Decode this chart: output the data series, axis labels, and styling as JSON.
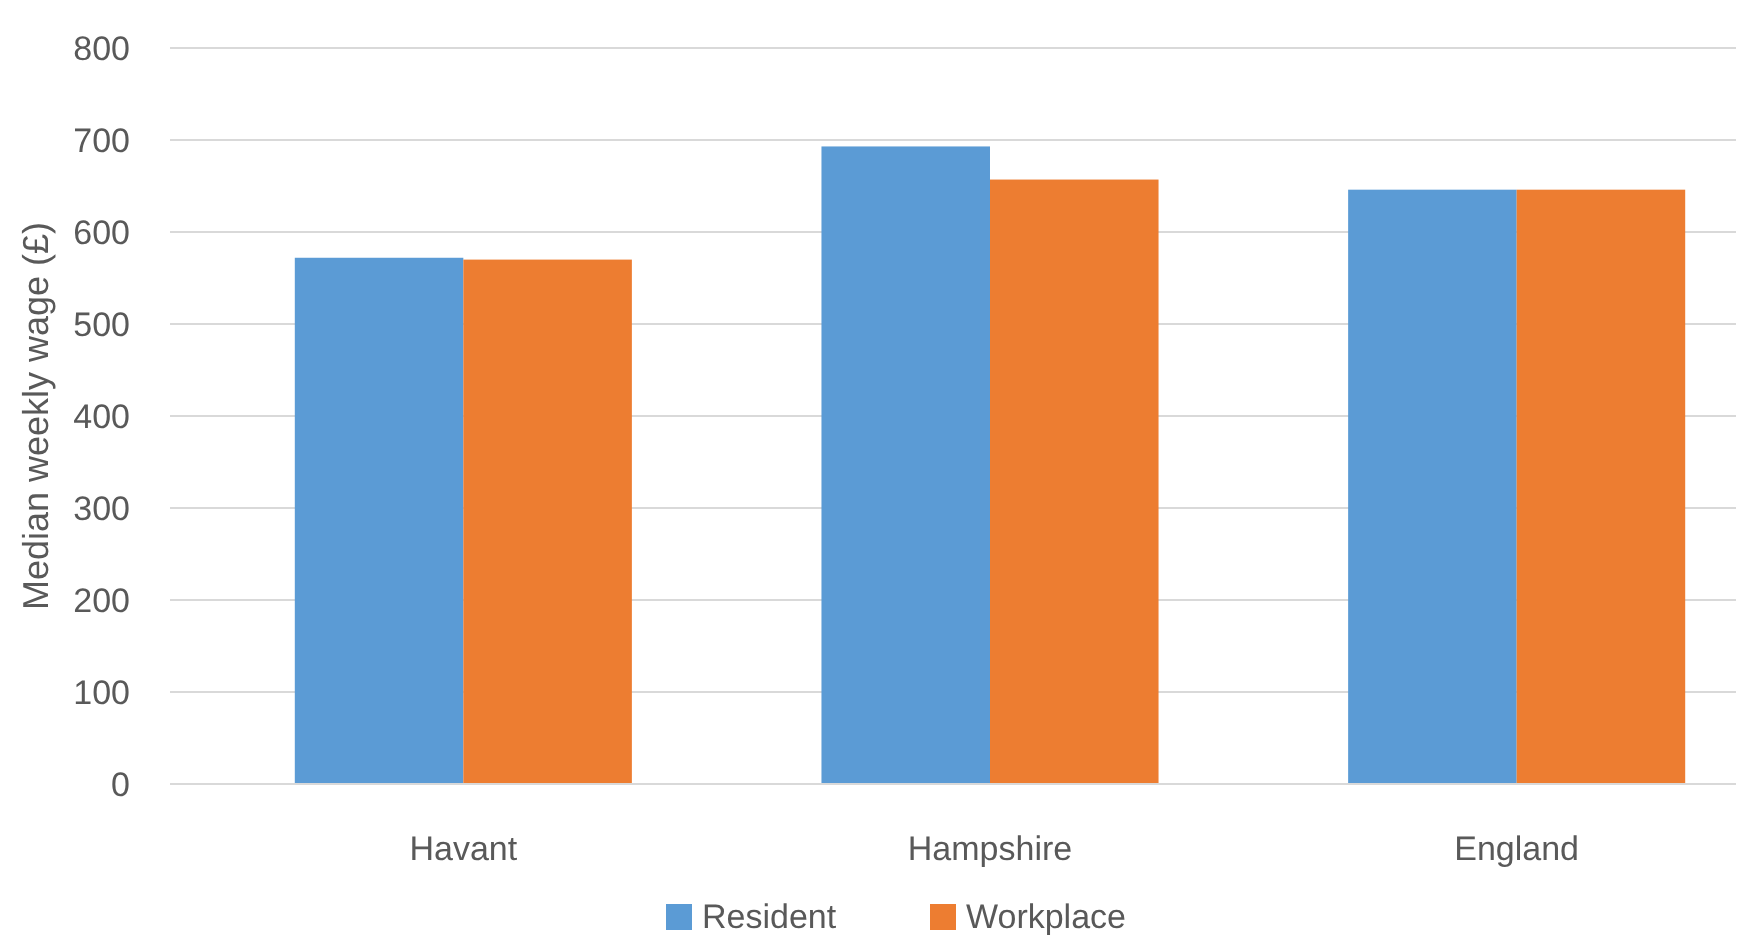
{
  "chart_data": {
    "type": "bar",
    "ylabel": "Median weekly wage (£)",
    "categories": [
      "Havant",
      "Hampshire",
      "England"
    ],
    "series": [
      {
        "name": "Resident",
        "color": "#5b9bd5",
        "values": [
          572,
          693,
          646
        ]
      },
      {
        "name": "Workplace",
        "color": "#ed7d31",
        "values": [
          570,
          657,
          646
        ]
      }
    ],
    "ylim": [
      0,
      800
    ],
    "yticks": [
      0,
      100,
      200,
      300,
      400,
      500,
      600,
      700,
      800
    ],
    "grid": "y",
    "legend": "bottom"
  }
}
